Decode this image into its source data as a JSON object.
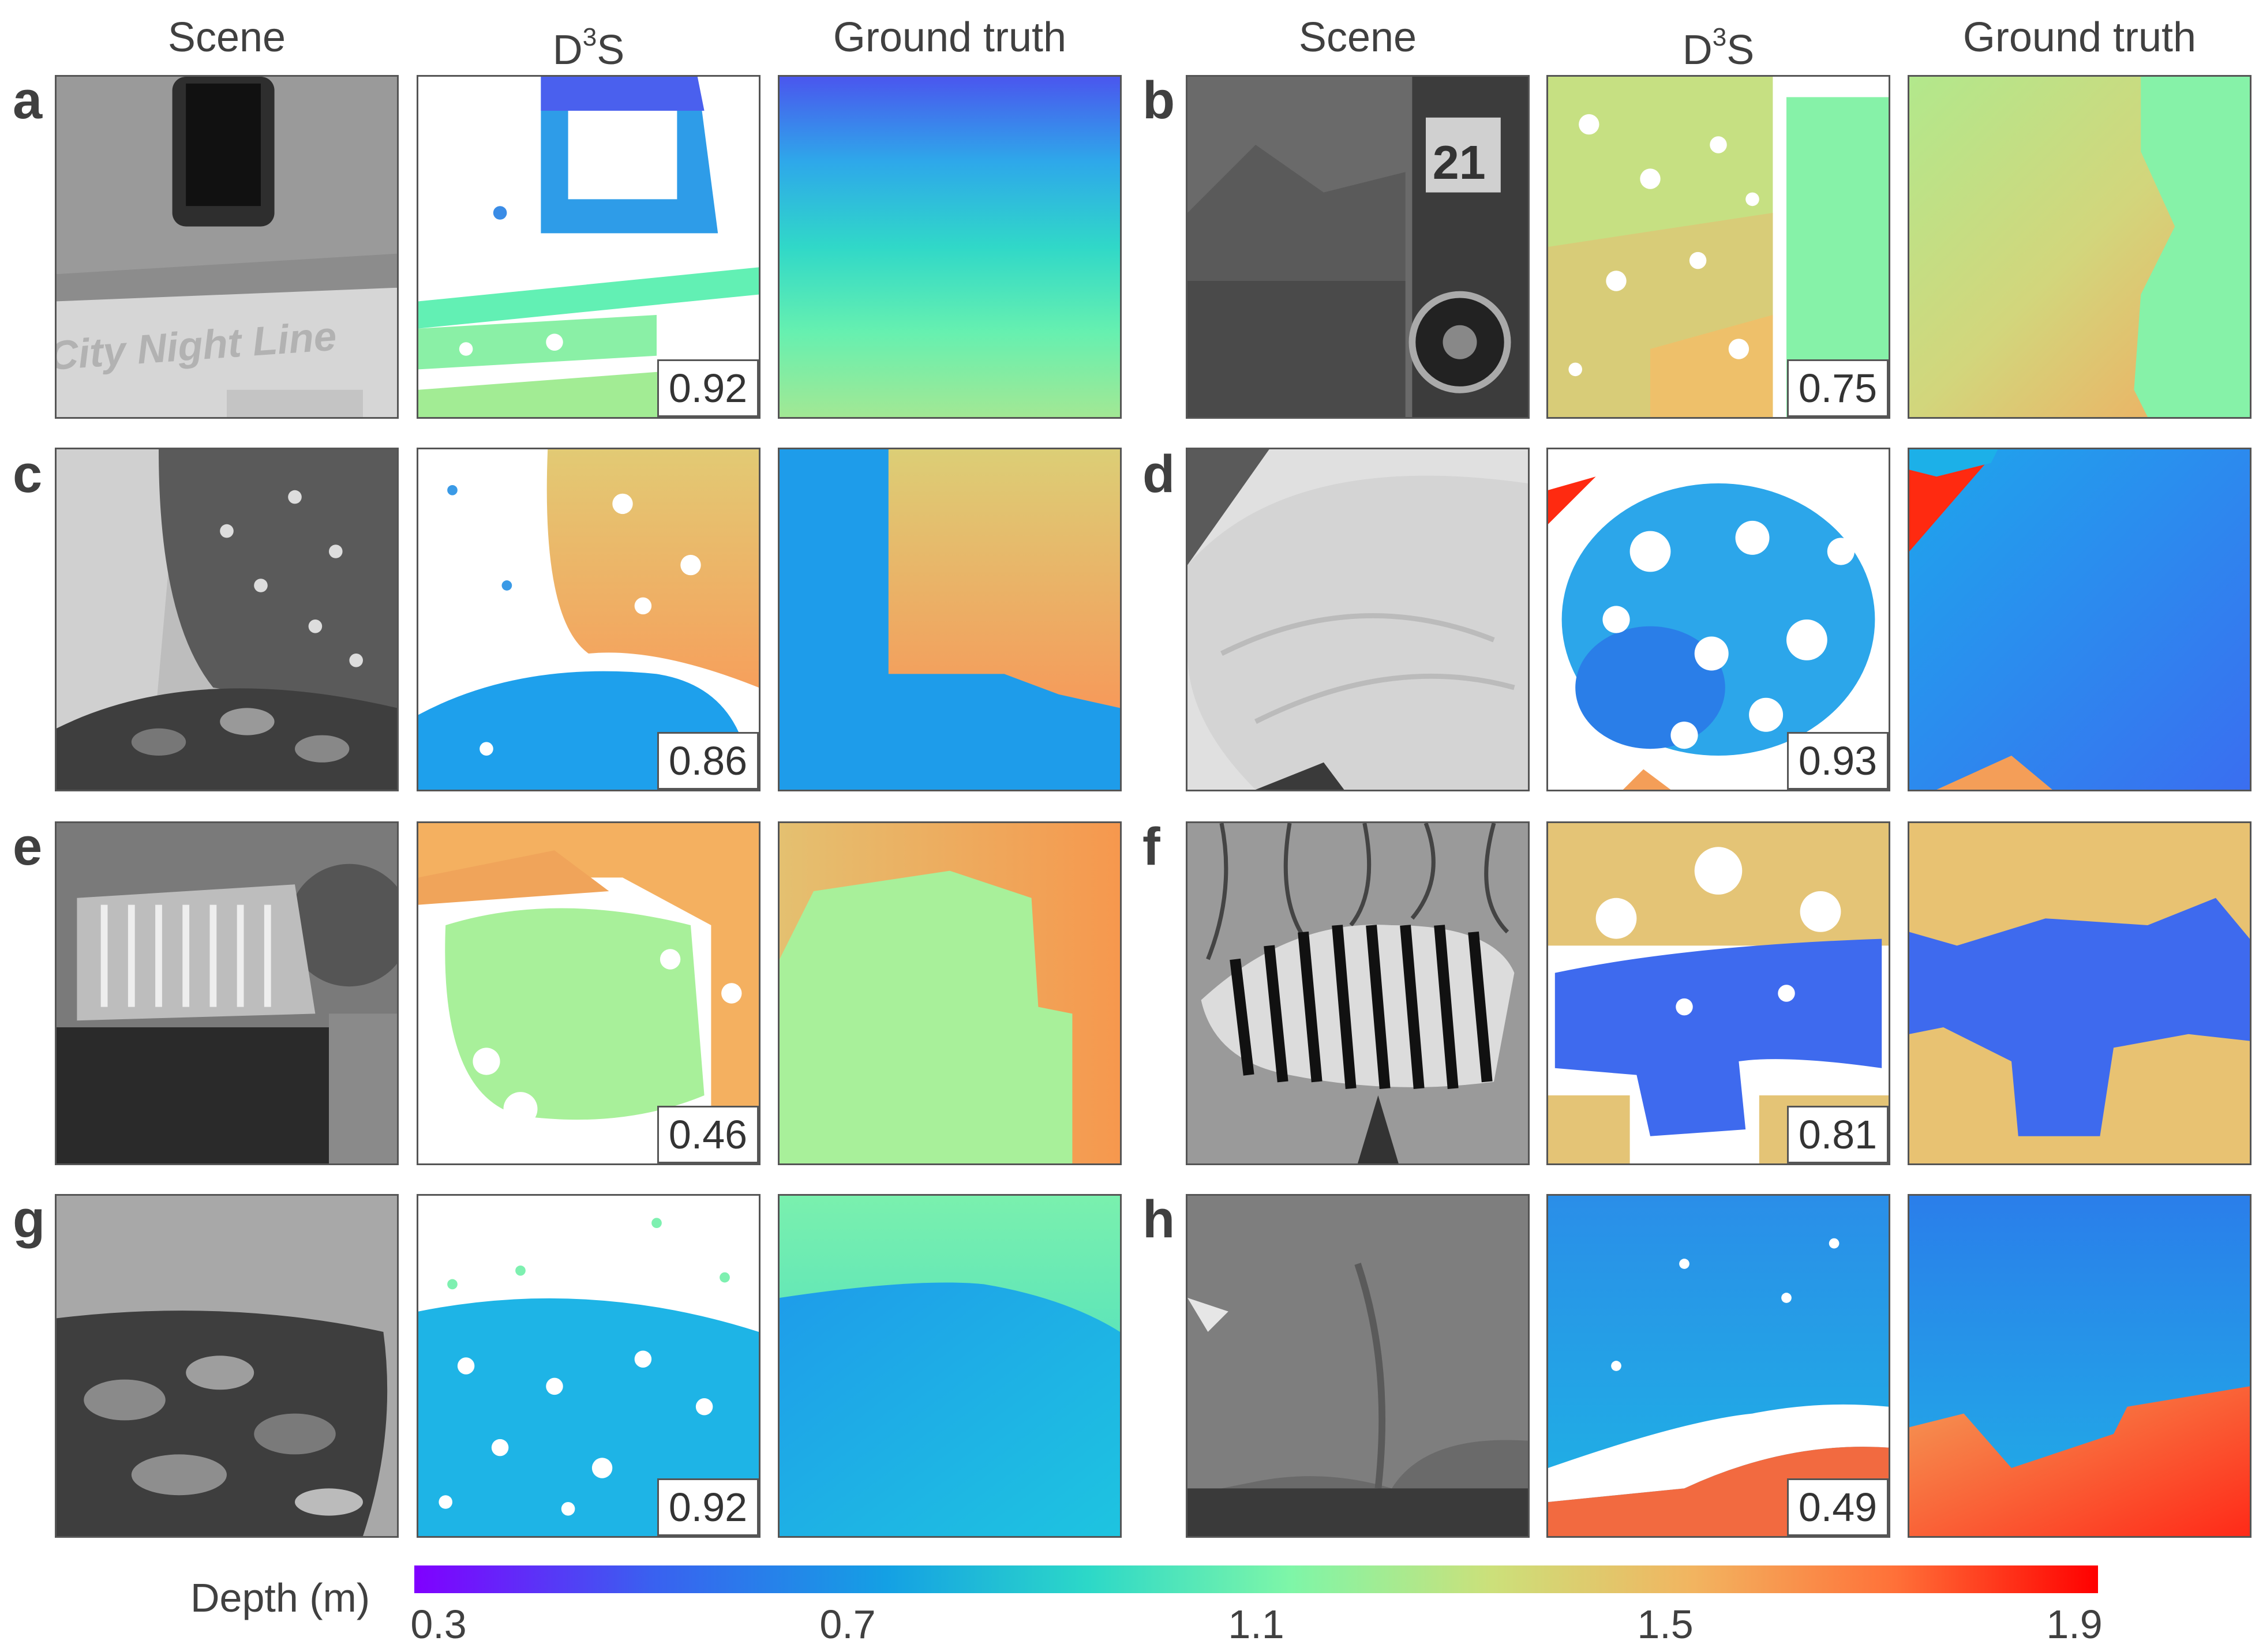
{
  "headers": {
    "scene": "Scene",
    "d3s_base": "D",
    "d3s_sup": "3",
    "d3s_tail": "S",
    "gt": "Ground truth"
  },
  "rows": [
    {
      "left": {
        "label": "a",
        "score": "0.92",
        "scene_text": "City Night Line"
      },
      "right": {
        "label": "b",
        "score": "0.75",
        "scene_text": "21"
      }
    },
    {
      "left": {
        "label": "c",
        "score": "0.86"
      },
      "right": {
        "label": "d",
        "score": "0.93"
      }
    },
    {
      "left": {
        "label": "e",
        "score": "0.46"
      },
      "right": {
        "label": "f",
        "score": "0.81"
      }
    },
    {
      "left": {
        "label": "g",
        "score": "0.92"
      },
      "right": {
        "label": "h",
        "score": "0.49"
      }
    }
  ],
  "colorbar": {
    "label": "Depth (m)",
    "ticks": [
      "0.3",
      "0.7",
      "1.1",
      "1.5",
      "1.9"
    ],
    "colors": [
      "#8000ff",
      "#3a60f0",
      "#14a0e4",
      "#2cd8c8",
      "#7ef6a8",
      "#cce07a",
      "#f2b460",
      "#ff7038",
      "#ff0000"
    ]
  }
}
